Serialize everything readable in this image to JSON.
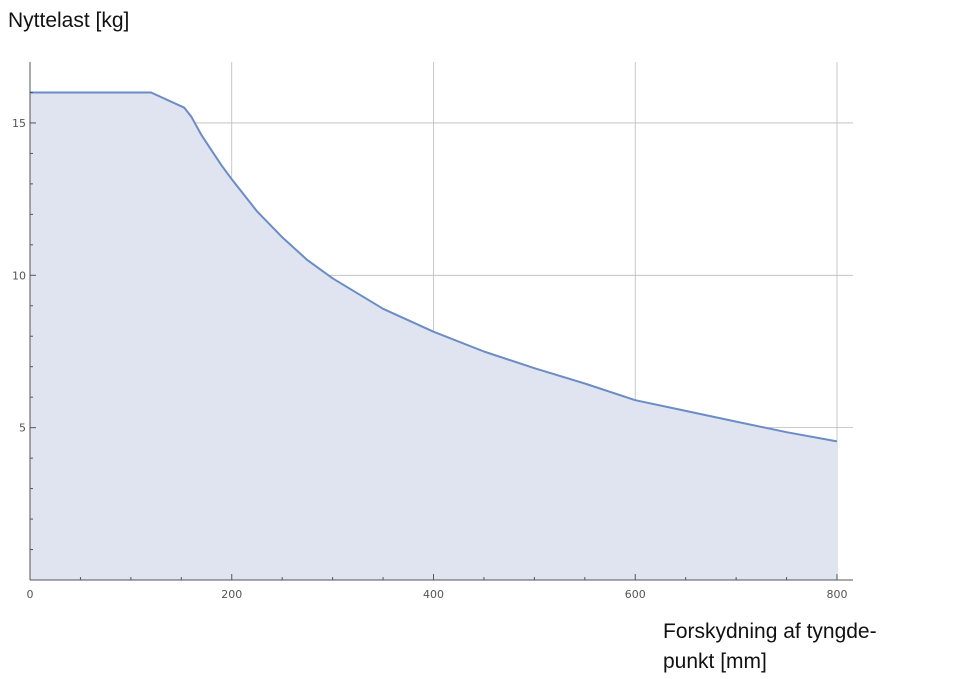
{
  "chart_data": {
    "type": "area",
    "title": "",
    "ylabel": "Nyttelast [kg]",
    "xlabel": "Forskydning af tyngdepunkt [mm]",
    "xlabel_line1": "Forskydning af tyngde-",
    "xlabel_line2": "punkt [mm]",
    "xlim": [
      0,
      800
    ],
    "ylim": [
      0,
      17
    ],
    "x_ticks": [
      0,
      200,
      400,
      600,
      800
    ],
    "x_tick_labels": [
      "0",
      "200",
      "400",
      "600",
      "800"
    ],
    "y_ticks": [
      5,
      10,
      15
    ],
    "y_tick_labels": [
      "5",
      "10",
      "15"
    ],
    "grid": true,
    "legend": "none",
    "series": [
      {
        "x": [
          0,
          120,
          153,
          160,
          170,
          180,
          190,
          200,
          225,
          250,
          275,
          300,
          350,
          400,
          450,
          500,
          550,
          600,
          650,
          700,
          750,
          800
        ],
        "values": [
          16,
          16,
          15.5,
          15.2,
          14.6,
          14.1,
          13.6,
          13.15,
          12.1,
          11.25,
          10.5,
          9.9,
          8.9,
          8.15,
          7.5,
          6.95,
          6.45,
          5.9,
          5.55,
          5.2,
          4.85,
          4.55
        ]
      }
    ],
    "colors": {
      "line": "#6b8cc4",
      "fill": "#dfe4f0",
      "grid": "#bbbbbb",
      "axis": "#555555"
    }
  }
}
